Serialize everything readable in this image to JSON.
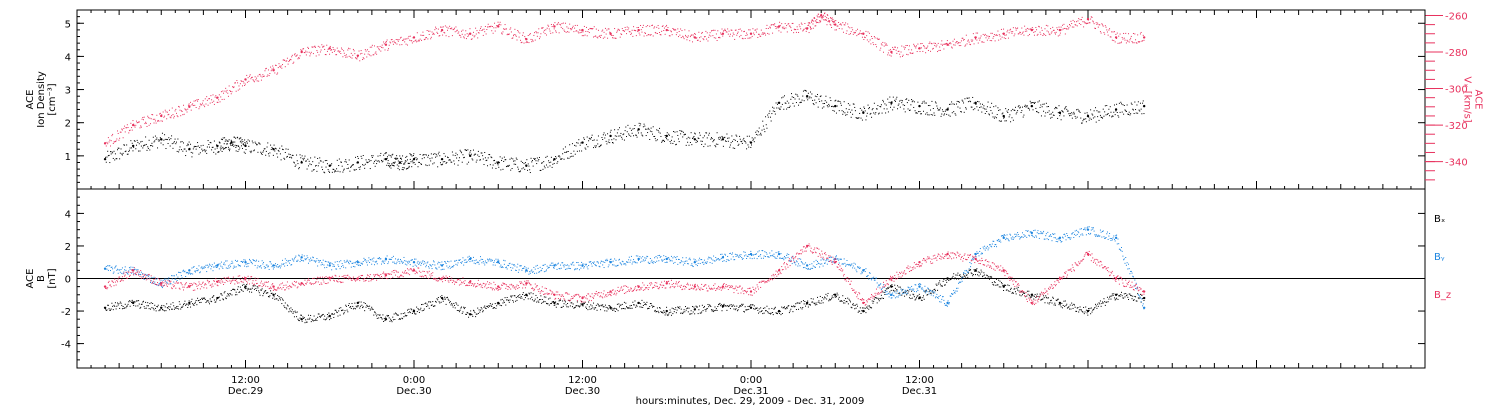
{
  "chart_data": [
    {
      "type": "scatter",
      "panel": "top",
      "ylabel_left_lines": [
        "ACE",
        "Ion Density",
        "[cm⁻³]"
      ],
      "ylabel_right_lines": [
        "ACE",
        "Vₓ [km/s]"
      ],
      "ylim_left": [
        0,
        5.4
      ],
      "ylim_right": [
        -355,
        -257
      ],
      "yticks_left": [
        1,
        2,
        3,
        4,
        5
      ],
      "yticks_right": [
        -260,
        -280,
        -300,
        -320,
        -340
      ],
      "right_axis_color": "#e8325e",
      "grid": false,
      "series": [
        {
          "axis": "left",
          "color": "#000000",
          "x": [
            2,
            4,
            6,
            8,
            10,
            11,
            12,
            14,
            16,
            18,
            20,
            22,
            23,
            24,
            26,
            28,
            30,
            32,
            34,
            36,
            38,
            40,
            42,
            44,
            46,
            48,
            50,
            52,
            54,
            56,
            58,
            60,
            62,
            64,
            66,
            68,
            70,
            72,
            74,
            76
          ],
          "values": [
            0.9,
            1.3,
            1.5,
            1.2,
            1.3,
            1.4,
            1.3,
            1.2,
            0.8,
            0.7,
            0.8,
            0.9,
            0.8,
            0.9,
            0.9,
            1.0,
            0.8,
            0.7,
            0.9,
            1.4,
            1.6,
            1.8,
            1.6,
            1.5,
            1.5,
            1.4,
            2.6,
            2.8,
            2.5,
            2.3,
            2.6,
            2.5,
            2.4,
            2.6,
            2.2,
            2.5,
            2.3,
            2.2,
            2.4,
            2.5
          ]
        },
        {
          "axis": "right",
          "color": "#e8325e",
          "x": [
            2,
            4,
            6,
            8,
            10,
            12,
            14,
            16,
            18,
            20,
            22,
            24,
            26,
            28,
            30,
            32,
            34,
            36,
            38,
            40,
            42,
            44,
            46,
            48,
            50,
            52,
            53,
            54,
            56,
            58,
            60,
            62,
            64,
            66,
            68,
            70,
            72,
            74,
            76
          ],
          "values": [
            -330,
            -320,
            -315,
            -310,
            -305,
            -295,
            -290,
            -280,
            -278,
            -282,
            -276,
            -272,
            -268,
            -270,
            -266,
            -273,
            -266,
            -268,
            -270,
            -268,
            -268,
            -272,
            -270,
            -270,
            -266,
            -267,
            -260,
            -265,
            -270,
            -280,
            -278,
            -276,
            -272,
            -270,
            -268,
            -268,
            -262,
            -272,
            -272
          ]
        }
      ]
    },
    {
      "type": "scatter",
      "panel": "bottom",
      "ylabel_left_lines": [
        "ACE",
        "B",
        "[nT]"
      ],
      "ylim": [
        -5.5,
        5.5
      ],
      "yticks": [
        4,
        2,
        0,
        -2,
        -4
      ],
      "zero_line": true,
      "grid": false,
      "series": [
        {
          "name": "Bₓ",
          "color": "#000000",
          "x": [
            2,
            4,
            6,
            8,
            10,
            12,
            14,
            16,
            18,
            20,
            22,
            24,
            26,
            28,
            30,
            32,
            34,
            36,
            38,
            40,
            42,
            44,
            46,
            48,
            50,
            52,
            54,
            56,
            58,
            60,
            62,
            64,
            66,
            68,
            70,
            72,
            74,
            76
          ],
          "values": [
            -1.8,
            -1.5,
            -1.8,
            -1.5,
            -1.2,
            -0.5,
            -1.0,
            -2.5,
            -2.3,
            -1.5,
            -2.5,
            -2.0,
            -1.2,
            -2.2,
            -1.5,
            -1.0,
            -1.5,
            -1.6,
            -1.8,
            -1.5,
            -2.0,
            -1.9,
            -1.7,
            -1.8,
            -2.0,
            -1.5,
            -1.0,
            -2.0,
            -0.5,
            -1.2,
            0.0,
            0.5,
            -0.5,
            -1.0,
            -1.5,
            -2.0,
            -1.0,
            -1.2
          ]
        },
        {
          "name": "Bᵧ",
          "color": "#1e86e0",
          "x": [
            2,
            4,
            6,
            8,
            10,
            12,
            14,
            16,
            18,
            20,
            22,
            24,
            26,
            28,
            30,
            32,
            34,
            36,
            38,
            40,
            42,
            44,
            46,
            48,
            50,
            52,
            54,
            56,
            58,
            60,
            62,
            64,
            66,
            68,
            70,
            72,
            74,
            76
          ],
          "values": [
            0.6,
            0.5,
            -0.3,
            0.5,
            0.8,
            1.0,
            0.8,
            1.3,
            0.8,
            1.0,
            1.2,
            1.0,
            0.8,
            1.2,
            1.0,
            0.5,
            0.8,
            0.8,
            1.0,
            1.2,
            1.2,
            1.0,
            1.3,
            1.5,
            1.5,
            0.8,
            1.2,
            0.5,
            -1.0,
            -0.5,
            -1.5,
            1.5,
            2.5,
            2.8,
            2.5,
            3.0,
            2.5,
            -1.8
          ]
        },
        {
          "name": "B_z",
          "color": "#e8325e",
          "x": [
            2,
            4,
            6,
            8,
            10,
            12,
            14,
            16,
            18,
            20,
            22,
            24,
            26,
            28,
            30,
            32,
            34,
            36,
            38,
            40,
            42,
            44,
            46,
            48,
            50,
            52,
            54,
            56,
            58,
            60,
            62,
            64,
            66,
            68,
            70,
            72,
            74,
            76
          ],
          "values": [
            -0.5,
            0.5,
            -0.3,
            -0.5,
            -0.2,
            0.0,
            -0.5,
            -0.3,
            0.0,
            0.0,
            0.2,
            0.5,
            0.0,
            -0.2,
            -0.5,
            -0.3,
            -1.0,
            -1.2,
            -0.8,
            -0.5,
            -0.3,
            -0.5,
            -0.5,
            -0.8,
            0.5,
            2.0,
            1.0,
            -1.5,
            0.0,
            1.0,
            1.5,
            1.2,
            0.5,
            -1.5,
            0.0,
            1.5,
            0.0,
            -0.8
          ]
        }
      ]
    }
  ],
  "legend": {
    "items": [
      {
        "label": "Bₓ",
        "color": "#000000"
      },
      {
        "label": "Bᵧ",
        "color": "#1e86e0"
      },
      {
        "label": "B_z",
        "color": "#e8325e"
      }
    ]
  },
  "time_axis": {
    "xlim_hours": [
      0,
      96
    ],
    "major_ticks": [
      {
        "hour": 12,
        "time": "12:00",
        "date": "Dec.29"
      },
      {
        "hour": 24,
        "time": "0:00",
        "date": "Dec.30"
      },
      {
        "hour": 36,
        "time": "12:00",
        "date": "Dec.30"
      },
      {
        "hour": 48,
        "time": "0:00",
        "date": "Dec.31"
      },
      {
        "hour": 60,
        "time": "12:00",
        "date": "Dec.31"
      }
    ],
    "xlabel": "hours:minutes, Dec. 29, 2009 - Dec. 31, 2009"
  }
}
